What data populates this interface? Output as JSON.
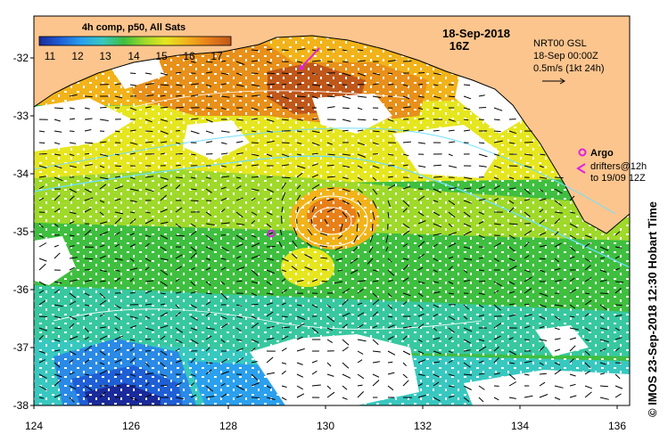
{
  "map": {
    "legend": {
      "title": "4h comp, p50, All Sats",
      "ticks": [
        "11",
        "12",
        "13",
        "14",
        "15",
        "16",
        "17"
      ],
      "gradient": [
        "#1a2a9a",
        "#1f5fd6",
        "#2aa0ee",
        "#38c8c0",
        "#3fbf3f",
        "#9fd92a",
        "#e6e61f",
        "#f2b31a",
        "#e8801a",
        "#c0571a"
      ]
    },
    "date_label": "18-Sep-2018",
    "time_label": "16Z",
    "vector_info": {
      "line1": "NRT00 GSL",
      "line2": "18-Sep 00:00Z",
      "line3": "0.5m/s (1kt 24h)"
    },
    "markers": {
      "argo_label": "Argo",
      "drifters_line1": "drifters@12h",
      "drifters_line2": "to 19/09 12Z",
      "argo_color": "#e020e0"
    },
    "credit": "© IMOS 23-Sep-2018 12:30 Hobart Time",
    "lat_labels": [
      "-32",
      "-33",
      "-34",
      "-35",
      "-36",
      "-37",
      "-38"
    ],
    "lon_labels": [
      "124",
      "126",
      "128",
      "130",
      "132",
      "134",
      "136"
    ],
    "colors": {
      "land": "#fdc58e",
      "cloud": "#ffffff",
      "current_contour": "#6fe0ff",
      "ssh_contour": "#ffffff"
    }
  }
}
